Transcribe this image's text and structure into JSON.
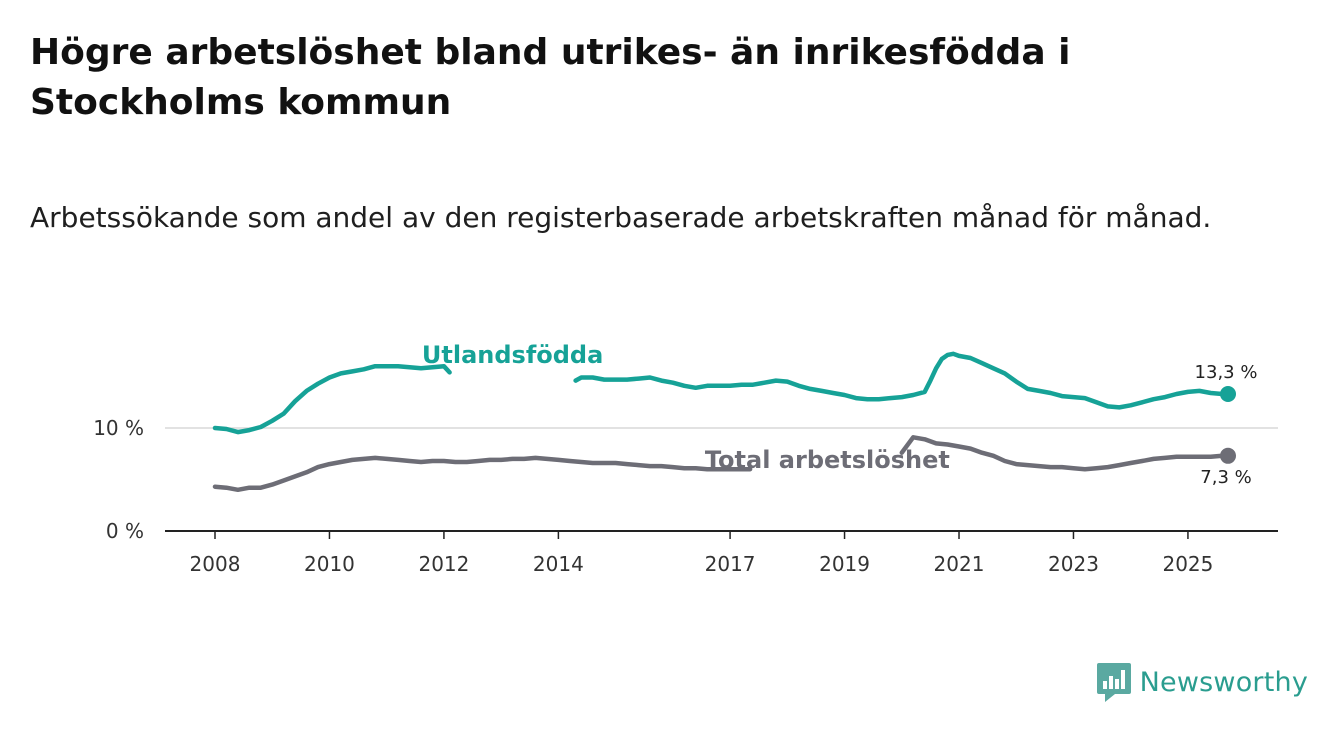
{
  "title": "Högre arbetslöshet bland utrikes- än inrikesfödda i Stockholms kommun",
  "subtitle": "Arbetssökande som andel av den registerbaserade arbetskraften månad för månad.",
  "brand": {
    "name": "Newsworthy",
    "icon": "newsworthy-logo-icon",
    "color": "#2a9d8f"
  },
  "chart_data": {
    "type": "line",
    "title": "Högre arbetslöshet bland utrikes- än inrikesfödda i Stockholms kommun",
    "xlabel": "",
    "ylabel": "",
    "xlim": [
      2008,
      2025.7
    ],
    "ylim": [
      0,
      11
    ],
    "x_ticks": [
      {
        "value": 2008,
        "label": "2008"
      },
      {
        "value": 2010,
        "label": "2010"
      },
      {
        "value": 2012,
        "label": "2012"
      },
      {
        "value": 2014,
        "label": "2014"
      },
      {
        "value": 2017,
        "label": "2017"
      },
      {
        "value": 2019,
        "label": "2019"
      },
      {
        "value": 2021,
        "label": "2021"
      },
      {
        "value": 2023,
        "label": "2023"
      },
      {
        "value": 2025,
        "label": "2025"
      }
    ],
    "y_ticks": [
      {
        "value": 0,
        "label": "0 %"
      },
      {
        "value": 10,
        "label": "10 %"
      }
    ],
    "gridlines": [
      10
    ],
    "series": [
      {
        "name": "Utlandsfödda",
        "color": "#16a297",
        "end_label": "13,3 %",
        "points": [
          [
            2008.0,
            10.0
          ],
          [
            2008.2,
            9.9
          ],
          [
            2008.4,
            9.6
          ],
          [
            2008.6,
            9.8
          ],
          [
            2008.8,
            10.1
          ],
          [
            2009.0,
            10.7
          ],
          [
            2009.2,
            11.4
          ],
          [
            2009.4,
            12.6
          ],
          [
            2009.6,
            13.6
          ],
          [
            2009.8,
            14.3
          ],
          [
            2010.0,
            14.9
          ],
          [
            2010.2,
            15.3
          ],
          [
            2010.4,
            15.5
          ],
          [
            2010.6,
            15.7
          ],
          [
            2010.8,
            16.0
          ],
          [
            2011.0,
            16.0
          ],
          [
            2011.2,
            16.0
          ],
          [
            2011.4,
            15.9
          ],
          [
            2011.6,
            15.8
          ],
          [
            2011.8,
            15.9
          ],
          [
            2012.0,
            16.0
          ],
          [
            2012.1,
            15.4
          ],
          [
            2014.3,
            14.6
          ],
          [
            2014.4,
            14.9
          ],
          [
            2014.6,
            14.9
          ],
          [
            2014.8,
            14.7
          ],
          [
            2015.0,
            14.7
          ],
          [
            2015.2,
            14.7
          ],
          [
            2015.4,
            14.8
          ],
          [
            2015.6,
            14.9
          ],
          [
            2015.8,
            14.6
          ],
          [
            2016.0,
            14.4
          ],
          [
            2016.2,
            14.1
          ],
          [
            2016.4,
            13.9
          ],
          [
            2016.6,
            14.1
          ],
          [
            2016.8,
            14.1
          ],
          [
            2017.0,
            14.1
          ],
          [
            2017.2,
            14.2
          ],
          [
            2017.4,
            14.2
          ],
          [
            2017.6,
            14.4
          ],
          [
            2017.8,
            14.6
          ],
          [
            2018.0,
            14.5
          ],
          [
            2018.2,
            14.1
          ],
          [
            2018.4,
            13.8
          ],
          [
            2018.6,
            13.6
          ],
          [
            2018.8,
            13.4
          ],
          [
            2019.0,
            13.2
          ],
          [
            2019.2,
            12.9
          ],
          [
            2019.4,
            12.8
          ],
          [
            2019.6,
            12.8
          ],
          [
            2019.8,
            12.9
          ],
          [
            2020.0,
            13.0
          ],
          [
            2020.2,
            13.2
          ],
          [
            2020.4,
            13.5
          ],
          [
            2020.5,
            14.6
          ],
          [
            2020.6,
            15.8
          ],
          [
            2020.7,
            16.7
          ],
          [
            2020.8,
            17.1
          ],
          [
            2020.9,
            17.2
          ],
          [
            2021.0,
            17.0
          ],
          [
            2021.2,
            16.8
          ],
          [
            2021.4,
            16.3
          ],
          [
            2021.6,
            15.8
          ],
          [
            2021.8,
            15.3
          ],
          [
            2022.0,
            14.5
          ],
          [
            2022.2,
            13.8
          ],
          [
            2022.4,
            13.6
          ],
          [
            2022.6,
            13.4
          ],
          [
            2022.8,
            13.1
          ],
          [
            2023.0,
            13.0
          ],
          [
            2023.2,
            12.9
          ],
          [
            2023.4,
            12.5
          ],
          [
            2023.6,
            12.1
          ],
          [
            2023.8,
            12.0
          ],
          [
            2024.0,
            12.2
          ],
          [
            2024.2,
            12.5
          ],
          [
            2024.4,
            12.8
          ],
          [
            2024.6,
            13.0
          ],
          [
            2024.8,
            13.3
          ],
          [
            2025.0,
            13.5
          ],
          [
            2025.2,
            13.6
          ],
          [
            2025.4,
            13.4
          ],
          [
            2025.6,
            13.3
          ],
          [
            2025.7,
            13.3
          ]
        ]
      },
      {
        "name": "Total arbetslöshet",
        "color": "#6d6d76",
        "end_label": "7,3 %",
        "points": [
          [
            2008.0,
            4.3
          ],
          [
            2008.2,
            4.2
          ],
          [
            2008.4,
            4.0
          ],
          [
            2008.6,
            4.2
          ],
          [
            2008.8,
            4.2
          ],
          [
            2009.0,
            4.5
          ],
          [
            2009.2,
            4.9
          ],
          [
            2009.4,
            5.3
          ],
          [
            2009.6,
            5.7
          ],
          [
            2009.8,
            6.2
          ],
          [
            2010.0,
            6.5
          ],
          [
            2010.2,
            6.7
          ],
          [
            2010.4,
            6.9
          ],
          [
            2010.6,
            7.0
          ],
          [
            2010.8,
            7.1
          ],
          [
            2011.0,
            7.0
          ],
          [
            2011.2,
            6.9
          ],
          [
            2011.4,
            6.8
          ],
          [
            2011.6,
            6.7
          ],
          [
            2011.8,
            6.8
          ],
          [
            2012.0,
            6.8
          ],
          [
            2012.2,
            6.7
          ],
          [
            2012.4,
            6.7
          ],
          [
            2012.6,
            6.8
          ],
          [
            2012.8,
            6.9
          ],
          [
            2013.0,
            6.9
          ],
          [
            2013.2,
            7.0
          ],
          [
            2013.4,
            7.0
          ],
          [
            2013.6,
            7.1
          ],
          [
            2013.8,
            7.0
          ],
          [
            2014.0,
            6.9
          ],
          [
            2014.2,
            6.8
          ],
          [
            2014.4,
            6.7
          ],
          [
            2014.6,
            6.6
          ],
          [
            2014.8,
            6.6
          ],
          [
            2015.0,
            6.6
          ],
          [
            2015.2,
            6.5
          ],
          [
            2015.4,
            6.4
          ],
          [
            2015.6,
            6.3
          ],
          [
            2015.8,
            6.3
          ],
          [
            2016.0,
            6.2
          ],
          [
            2016.2,
            6.1
          ],
          [
            2016.4,
            6.1
          ],
          [
            2016.6,
            6.0
          ],
          [
            2016.8,
            6.0
          ],
          [
            2017.0,
            6.0
          ],
          [
            2017.2,
            6.0
          ],
          [
            2017.35,
            6.0
          ],
          [
            2020.0,
            7.6
          ],
          [
            2020.2,
            9.1
          ],
          [
            2020.4,
            8.9
          ],
          [
            2020.6,
            8.5
          ],
          [
            2020.8,
            8.4
          ],
          [
            2021.0,
            8.2
          ],
          [
            2021.2,
            8.0
          ],
          [
            2021.4,
            7.6
          ],
          [
            2021.6,
            7.3
          ],
          [
            2021.8,
            6.8
          ],
          [
            2022.0,
            6.5
          ],
          [
            2022.2,
            6.4
          ],
          [
            2022.4,
            6.3
          ],
          [
            2022.6,
            6.2
          ],
          [
            2022.8,
            6.2
          ],
          [
            2023.0,
            6.1
          ],
          [
            2023.2,
            6.0
          ],
          [
            2023.4,
            6.1
          ],
          [
            2023.6,
            6.2
          ],
          [
            2023.8,
            6.4
          ],
          [
            2024.0,
            6.6
          ],
          [
            2024.2,
            6.8
          ],
          [
            2024.4,
            7.0
          ],
          [
            2024.6,
            7.1
          ],
          [
            2024.8,
            7.2
          ],
          [
            2025.0,
            7.2
          ],
          [
            2025.2,
            7.2
          ],
          [
            2025.4,
            7.2
          ],
          [
            2025.6,
            7.3
          ],
          [
            2025.7,
            7.3
          ]
        ]
      }
    ],
    "annotations": [
      {
        "text": "Utlandsfödda",
        "series": "Utlandsfödda",
        "x": 2013.2,
        "y": 16.3
      },
      {
        "text": "Total arbetslöshet",
        "series": "Total arbetslöshet",
        "x": 2018.7,
        "y": 6.1
      }
    ]
  }
}
